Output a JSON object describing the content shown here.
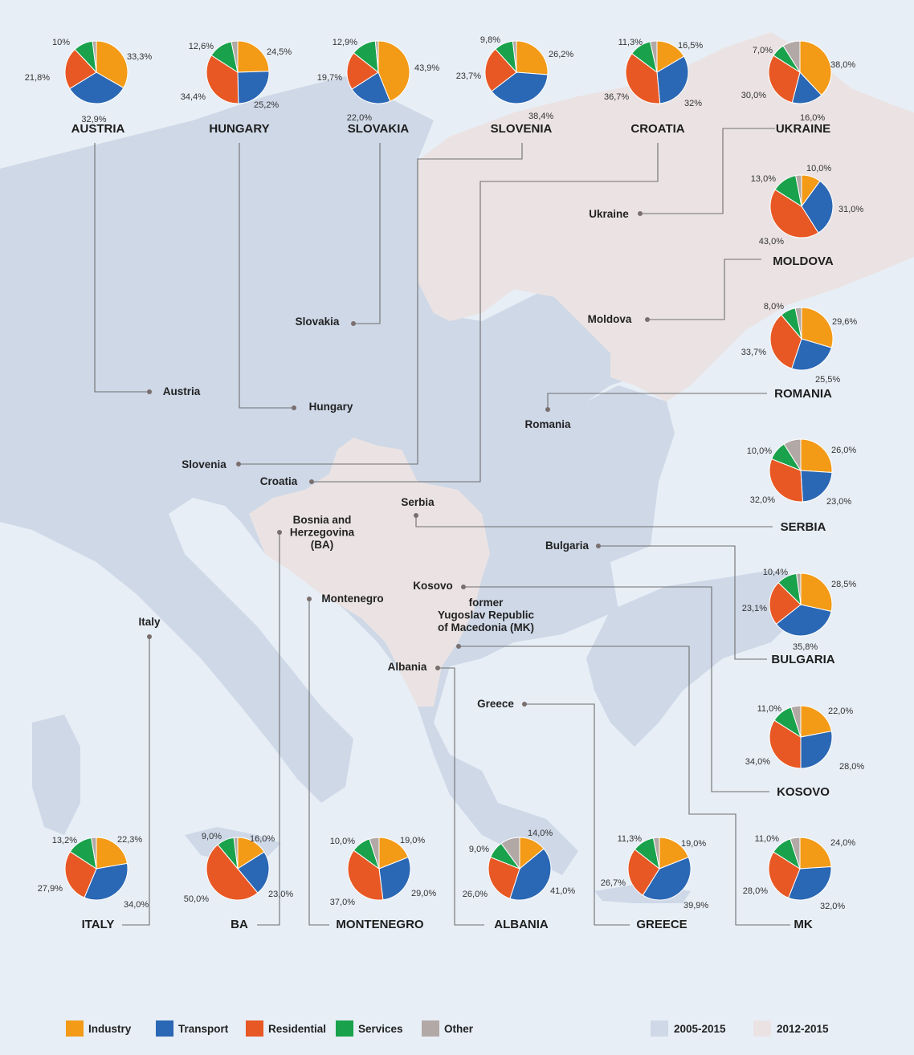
{
  "colors": {
    "sea": "#e7eef6",
    "land_grey": "#ced8e7",
    "land_pink": "#ebe3e3",
    "Industry": "#f39a17",
    "Transport": "#2a67b4",
    "Residential": "#e85824",
    "Services": "#19a24b",
    "Other": "#b2a8a6",
    "leader_line": "#6f6f6f"
  },
  "legend": {
    "sectors": [
      "Industry",
      "Transport",
      "Residential",
      "Services",
      "Other"
    ],
    "periods": [
      {
        "label": "2005-2015",
        "color": "#ced8e7"
      },
      {
        "label": "2012-2015",
        "color": "#ebe3e3"
      }
    ]
  },
  "map_labels": [
    {
      "id": "ukraine",
      "lines": [
        "Ukraine"
      ]
    },
    {
      "id": "moldova",
      "lines": [
        "Moldova"
      ]
    },
    {
      "id": "slovakia",
      "lines": [
        "Slovakia"
      ]
    },
    {
      "id": "austria",
      "lines": [
        "Austria"
      ]
    },
    {
      "id": "hungary",
      "lines": [
        "Hungary"
      ]
    },
    {
      "id": "romania",
      "lines": [
        "Romania"
      ]
    },
    {
      "id": "slovenia",
      "lines": [
        "Slovenia"
      ]
    },
    {
      "id": "croatia",
      "lines": [
        "Croatia"
      ]
    },
    {
      "id": "serbia",
      "lines": [
        "Serbia"
      ]
    },
    {
      "id": "bosnia",
      "lines": [
        "Bosnia and",
        "Herzegovina",
        "(BA)"
      ]
    },
    {
      "id": "bulgaria",
      "lines": [
        "Bulgaria"
      ]
    },
    {
      "id": "kosovo",
      "lines": [
        "Kosovo"
      ]
    },
    {
      "id": "montenegro",
      "lines": [
        "Montenegro"
      ]
    },
    {
      "id": "fyrom",
      "lines": [
        "former",
        "Yugoslav Republic",
        "of Macedonia (MK)"
      ]
    },
    {
      "id": "italy",
      "lines": [
        "Italy"
      ]
    },
    {
      "id": "albania",
      "lines": [
        "Albania"
      ]
    },
    {
      "id": "greece",
      "lines": [
        "Greece"
      ]
    }
  ],
  "countries": [
    {
      "id": "austria",
      "name": "AUSTRIA",
      "values": {
        "Industry": 33.3,
        "Transport": 32.9,
        "Residential": 21.8,
        "Services": 10,
        "Other": 2.0
      },
      "labels": {
        "Industry": "33,3%",
        "Transport": "32,9%",
        "Residential": "21,8%",
        "Services": "10%"
      }
    },
    {
      "id": "hungary",
      "name": "HUNGARY",
      "values": {
        "Industry": 24.5,
        "Transport": 25.2,
        "Residential": 34.4,
        "Services": 12.6,
        "Other": 3.3
      },
      "labels": {
        "Industry": "24,5%",
        "Transport": "25,2%",
        "Residential": "34,4%",
        "Services": "12,6%"
      }
    },
    {
      "id": "slovakia",
      "name": "SLOVAKIA",
      "values": {
        "Industry": 43.9,
        "Transport": 22.0,
        "Residential": 19.7,
        "Services": 12.9,
        "Other": 1.5
      },
      "labels": {
        "Industry": "43,9%",
        "Transport": "22,0%",
        "Residential": "19,7%",
        "Services": "12,9%"
      }
    },
    {
      "id": "slovenia",
      "name": "SLOVENIA",
      "values": {
        "Industry": 26.2,
        "Transport": 38.4,
        "Residential": 23.7,
        "Services": 9.8,
        "Other": 1.9
      },
      "labels": {
        "Industry": "26,2%",
        "Transport": "38,4%",
        "Residential": "23,7%",
        "Services": "9,8%"
      }
    },
    {
      "id": "croatia",
      "name": "CROATIA",
      "values": {
        "Industry": 16.5,
        "Transport": 32.0,
        "Residential": 36.7,
        "Services": 11.3,
        "Other": 3.5
      },
      "labels": {
        "Industry": "16,5%",
        "Transport": "32%",
        "Residential": "36,7%",
        "Services": "11,3%"
      }
    },
    {
      "id": "ukraine",
      "name": "UKRAINE",
      "values": {
        "Industry": 38.0,
        "Transport": 16.0,
        "Residential": 30.0,
        "Services": 7.0,
        "Other": 9.0
      },
      "labels": {
        "Industry": "38,0%",
        "Transport": "16,0%",
        "Residential": "30,0%",
        "Services": "7,0%"
      }
    },
    {
      "id": "moldova",
      "name": "MOLDOVA",
      "values": {
        "Industry": 10.0,
        "Transport": 31.0,
        "Residential": 43.0,
        "Services": 13.0,
        "Other": 3.0
      },
      "labels": {
        "Industry": "10,0%",
        "Transport": "31,0%",
        "Residential": "43,0%",
        "Services": "13,0%"
      }
    },
    {
      "id": "romania",
      "name": "ROMANIA",
      "values": {
        "Industry": 29.6,
        "Transport": 25.5,
        "Residential": 33.7,
        "Services": 8.0,
        "Other": 3.2
      },
      "labels": {
        "Industry": "29,6%",
        "Transport": "25,5%",
        "Residential": "33,7%",
        "Services": "8,0%"
      }
    },
    {
      "id": "serbia",
      "name": "SERBIA",
      "values": {
        "Industry": 26.0,
        "Transport": 23.0,
        "Residential": 32.0,
        "Services": 10.0,
        "Other": 9.0
      },
      "labels": {
        "Industry": "26,0%",
        "Transport": "23,0%",
        "Residential": "32,0%",
        "Services": "10,0%"
      }
    },
    {
      "id": "bulgaria",
      "name": "BULGARIA",
      "values": {
        "Industry": 28.5,
        "Transport": 35.8,
        "Residential": 23.1,
        "Services": 10.4,
        "Other": 2.2
      },
      "labels": {
        "Industry": "28,5%",
        "Transport": "35,8%",
        "Residential": "23,1%",
        "Services": "10,4%"
      }
    },
    {
      "id": "kosovo",
      "name": "KOSOVO",
      "values": {
        "Industry": 22.0,
        "Transport": 28.0,
        "Residential": 34.0,
        "Services": 11.0,
        "Other": 5.0
      },
      "labels": {
        "Industry": "22,0%",
        "Transport": "28,0%",
        "Residential": "34,0%",
        "Services": "11,0%"
      }
    },
    {
      "id": "italy",
      "name": "ITALY",
      "values": {
        "Industry": 22.3,
        "Transport": 34.0,
        "Residential": 27.9,
        "Services": 13.2,
        "Other": 2.6
      },
      "labels": {
        "Industry": "22,3%",
        "Transport": "34,0%",
        "Residential": "27,9%",
        "Services": "13,2%"
      }
    },
    {
      "id": "ba",
      "name": "BA",
      "values": {
        "Industry": 16.0,
        "Transport": 23.0,
        "Residential": 50.0,
        "Services": 9.0,
        "Other": 2.0
      },
      "labels": {
        "Industry": "16,0%",
        "Transport": "23,0%",
        "Residential": "50,0%",
        "Services": "9,0%"
      }
    },
    {
      "id": "montenegro",
      "name": "MONTENEGRO",
      "values": {
        "Industry": 19.0,
        "Transport": 29.0,
        "Residential": 37.0,
        "Services": 10.0,
        "Other": 5.0
      },
      "labels": {
        "Industry": "19,0%",
        "Transport": "29,0%",
        "Residential": "37,0%",
        "Services": "10,0%"
      }
    },
    {
      "id": "albania",
      "name": "ALBANIA",
      "values": {
        "Industry": 14.0,
        "Transport": 41.0,
        "Residential": 26.0,
        "Services": 9.0,
        "Other": 10.0
      },
      "labels": {
        "Industry": "14,0%",
        "Transport": "41,0%",
        "Residential": "26,0%",
        "Services": "9,0%"
      }
    },
    {
      "id": "greece",
      "name": "GREECE",
      "values": {
        "Industry": 19.0,
        "Transport": 39.9,
        "Residential": 26.7,
        "Services": 11.3,
        "Other": 3.1
      },
      "labels": {
        "Industry": "19,0%",
        "Transport": "39,9%",
        "Residential": "26,7%",
        "Services": "11,3%"
      }
    },
    {
      "id": "mk",
      "name": "MK",
      "values": {
        "Industry": 24.0,
        "Transport": 32.0,
        "Residential": 28.0,
        "Services": 11.0,
        "Other": 5.0
      },
      "labels": {
        "Industry": "24,0%",
        "Transport": "32,0%",
        "Residential": "28,0%",
        "Services": "11,0%"
      }
    }
  ]
}
